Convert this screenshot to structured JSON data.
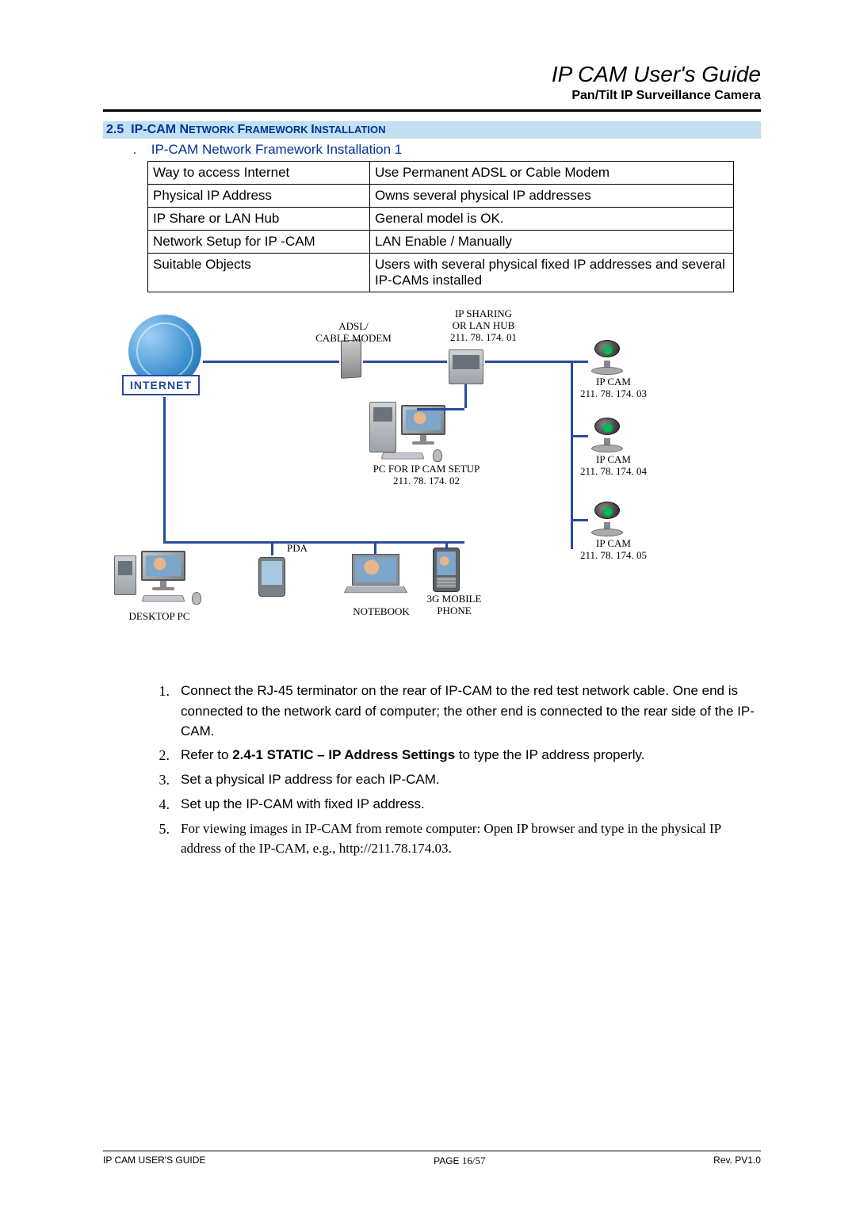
{
  "header": {
    "title": "IP CAM User's Guide",
    "subtitle": "Pan/Tilt IP Surveillance Camera"
  },
  "section": {
    "number": "2.5",
    "title_part1": "IP-CAM N",
    "title_part2": "ETWORK ",
    "title_part3": "F",
    "title_part4": "RAMEWORK ",
    "title_part5": "I",
    "title_part6": "NSTALLATION"
  },
  "subsection": {
    "bullet": ".",
    "title": "IP-CAM Network Framework Installation 1"
  },
  "table": {
    "rows": [
      {
        "k": "Way to access Internet",
        "v": "Use Permanent ADSL or Cable Modem"
      },
      {
        "k": "Physical IP Address",
        "v": "Owns several physical IP addresses"
      },
      {
        "k": "IP Share or LAN Hub",
        "v": "General model is OK."
      },
      {
        "k": "Network Setup for IP -CAM",
        "v": "LAN Enable / Manually"
      },
      {
        "k": "Suitable Objects",
        "v": "Users with several physical fixed IP addresses and several IP-CAMs installed"
      }
    ]
  },
  "diagram": {
    "internet": "INTERNET",
    "modem_label": "ADSL/\nCABLE MODEM",
    "hub_label": "IP SHARING\nOR LAN HUB\n211. 78. 174. 01",
    "pc_setup": "PC FOR IP CAM SETUP\n211. 78. 174. 02",
    "cam1": "IP CAM\n211. 78. 174. 03",
    "cam2": "IP CAM\n211. 78. 174. 04",
    "cam3": "IP CAM\n211. 78. 174. 05",
    "desktop": "DESKTOP PC",
    "pda": "PDA",
    "notebook": "NOTEBOOK",
    "mobile": "3G MOBILE\nPHONE",
    "line_color": "#2a4b9b"
  },
  "steps": [
    {
      "n": "1.",
      "html": "Connect the RJ-45 terminator on the rear of IP-CAM to the red test network cable. One end is connected to the network card of computer; the other end is connected to the rear side of the IP-CAM."
    },
    {
      "n": "2.",
      "html": "Refer to <b>2.4-1 STATIC – IP Address Settings</b> to type the IP address properly."
    },
    {
      "n": "3.",
      "html": "Set a physical IP address for each IP-CAM."
    },
    {
      "n": "4.",
      "html": "Set up the IP-CAM with fixed IP address."
    },
    {
      "n": "5.",
      "html": "<span class='serif'>For viewing images in IP-CAM from remote computer: Open IP browser and type in the physical IP address of the IP-CAM, e.g., http://211.78.174.03.</span>"
    }
  ],
  "footer": {
    "left": "IP CAM USER'S GUIDE",
    "center_a": "PAGE ",
    "center_b": "16/57",
    "right": "Rev. PV1.0"
  }
}
